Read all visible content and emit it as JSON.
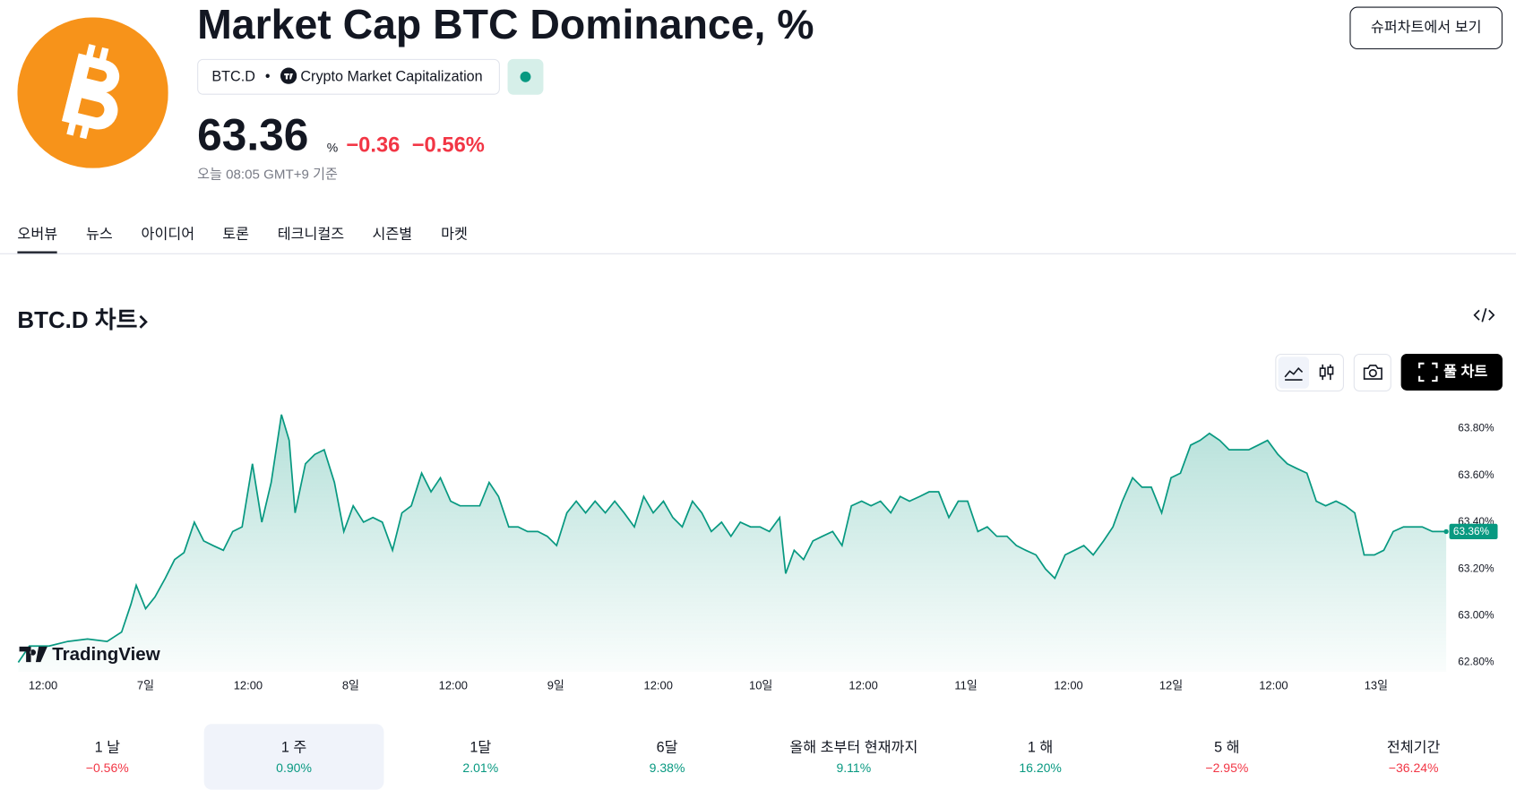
{
  "header": {
    "title": "Market Cap BTC Dominance, %",
    "symbol": "BTC.D",
    "exchange": "Crypto Market Capitalization",
    "price": "63.36",
    "unit": "%",
    "change": "−0.36",
    "change_pct": "−0.56%",
    "time": "오늘 08:05 GMT+9 기준",
    "button": "슈퍼차트에서 보기"
  },
  "tabs": [
    "오버뷰",
    "뉴스",
    "아이디어",
    "토론",
    "테크니컬즈",
    "시즌별",
    "마켓"
  ],
  "section": {
    "title": "BTC.D 차트",
    "full_chart": "풀 차트"
  },
  "chart_data": {
    "type": "line",
    "color": "#089981",
    "watermark": "TradingView",
    "x": [
      9.1,
      10.4,
      12.7,
      14.9,
      17.2,
      19.5,
      21.2,
      22.3,
      22.9,
      24.0,
      25.1,
      26.3,
      27.4,
      28.5,
      29.7,
      30.8,
      31.9,
      33.1,
      34.2,
      35.3,
      36.5,
      37.6,
      38.7,
      39.9,
      40.8,
      41.5,
      42.7,
      43.8,
      44.9,
      46.1,
      47.2,
      48.3,
      49.5,
      50.6,
      51.7,
      52.9,
      54.0,
      55.1,
      56.3,
      57.4,
      58.5,
      59.7,
      60.8,
      61.9,
      63.1,
      64.2,
      65.3,
      66.5,
      67.6,
      68.7,
      69.9,
      71.0,
      72.1,
      73.3,
      74.4,
      75.5,
      76.6,
      77.8,
      78.9,
      80.0,
      81.2,
      82.3,
      83.4,
      84.6,
      85.7,
      86.8,
      88.0,
      89.1,
      90.2,
      91.4,
      92.5,
      93.6,
      94.8,
      95.9,
      97.0,
      98.2,
      98.9,
      99.9,
      101.0,
      102.1,
      103.2,
      104.4,
      105.5,
      106.6,
      107.8,
      108.9,
      110.0,
      111.2,
      112.3,
      113.4,
      114.6,
      115.7,
      116.8,
      118.0,
      119.1,
      120.2,
      121.4,
      122.5,
      123.6,
      124.8,
      125.9,
      127.0,
      128.2,
      129.3,
      130.4,
      131.6,
      132.7,
      133.8,
      134.9,
      136.1,
      137.2,
      138.3,
      139.5,
      140.6,
      141.7,
      142.9,
      144.0,
      145.1,
      146.3,
      147.4,
      148.5,
      149.7,
      150.8,
      151.9,
      153.1,
      154.2,
      155.3,
      156.5,
      157.6,
      158.7,
      159.9,
      161.0,
      162.1,
      163.3,
      164.4,
      165.5,
      166.6,
      167.8,
      168.9,
      170.0,
      171.2,
      172.3,
      173.4,
      174.6,
      176.2
    ],
    "values": [
      62.8,
      62.87,
      62.87,
      62.89,
      62.9,
      62.89,
      62.93,
      63.05,
      63.13,
      63.03,
      63.08,
      63.16,
      63.24,
      63.27,
      63.4,
      63.32,
      63.3,
      63.28,
      63.36,
      63.38,
      63.65,
      63.4,
      63.57,
      63.86,
      63.75,
      63.44,
      63.65,
      63.69,
      63.71,
      63.57,
      63.36,
      63.47,
      63.4,
      63.42,
      63.4,
      63.28,
      63.44,
      63.47,
      63.61,
      63.53,
      63.59,
      63.49,
      63.47,
      63.47,
      63.47,
      63.57,
      63.51,
      63.38,
      63.38,
      63.36,
      63.36,
      63.34,
      63.3,
      63.44,
      63.49,
      63.44,
      63.49,
      63.44,
      63.49,
      63.44,
      63.38,
      63.51,
      63.44,
      63.49,
      63.42,
      63.38,
      63.49,
      63.44,
      63.36,
      63.4,
      63.34,
      63.4,
      63.38,
      63.38,
      63.36,
      63.42,
      63.18,
      63.28,
      63.24,
      63.32,
      63.34,
      63.36,
      63.3,
      63.47,
      63.49,
      63.47,
      63.49,
      63.44,
      63.51,
      63.49,
      63.51,
      63.53,
      63.53,
      63.42,
      63.49,
      63.49,
      63.36,
      63.38,
      63.34,
      63.34,
      63.3,
      63.28,
      63.26,
      63.2,
      63.16,
      63.26,
      63.28,
      63.3,
      63.26,
      63.32,
      63.38,
      63.49,
      63.59,
      63.55,
      63.55,
      63.44,
      63.59,
      63.61,
      63.73,
      63.75,
      63.78,
      63.75,
      63.71,
      63.71,
      63.71,
      63.73,
      63.75,
      63.69,
      63.65,
      63.63,
      63.61,
      63.49,
      63.47,
      63.49,
      63.47,
      63.44,
      63.26,
      63.26,
      63.28,
      63.36,
      63.38,
      63.38,
      63.38,
      63.36,
      63.36
    ],
    "xlim": [
      9,
      176
    ],
    "ylim": [
      62.76,
      63.98
    ],
    "xticks": [
      {
        "value": 12,
        "label": "12:00"
      },
      {
        "value": 24,
        "label": "7일"
      },
      {
        "value": 36,
        "label": "12:00"
      },
      {
        "value": 48,
        "label": "8일"
      },
      {
        "value": 60,
        "label": "12:00"
      },
      {
        "value": 72,
        "label": "9일"
      },
      {
        "value": 84,
        "label": "12:00"
      },
      {
        "value": 96,
        "label": "10일"
      },
      {
        "value": 108,
        "label": "12:00"
      },
      {
        "value": 120,
        "label": "11일"
      },
      {
        "value": 132,
        "label": "12:00"
      },
      {
        "value": 144,
        "label": "12일"
      },
      {
        "value": 156,
        "label": "12:00"
      },
      {
        "value": 168,
        "label": "13일"
      }
    ],
    "yticks": [
      {
        "value": 62.8,
        "label": "62.80%"
      },
      {
        "value": 63.0,
        "label": "63.00%"
      },
      {
        "value": 63.2,
        "label": "63.20%"
      },
      {
        "value": 63.4,
        "label": "63.40%"
      },
      {
        "value": 63.6,
        "label": "63.60%"
      },
      {
        "value": 63.8,
        "label": "63.80%"
      }
    ],
    "price_label": {
      "value": 63.36,
      "label": "63.36%"
    }
  },
  "periods": [
    {
      "label": "1 날",
      "change": "−0.56%"
    },
    {
      "label": "1 주",
      "change": "0.90%"
    },
    {
      "label": "1달",
      "change": "2.01%"
    },
    {
      "label": "6달",
      "change": "9.38%"
    },
    {
      "label": "올해 초부터 현재까지",
      "change": "9.11%"
    },
    {
      "label": "1 해",
      "change": "16.20%"
    },
    {
      "label": "5 해",
      "change": "−2.95%"
    },
    {
      "label": "전체기간",
      "change": "−36.24%"
    }
  ],
  "selected_period": 1
}
